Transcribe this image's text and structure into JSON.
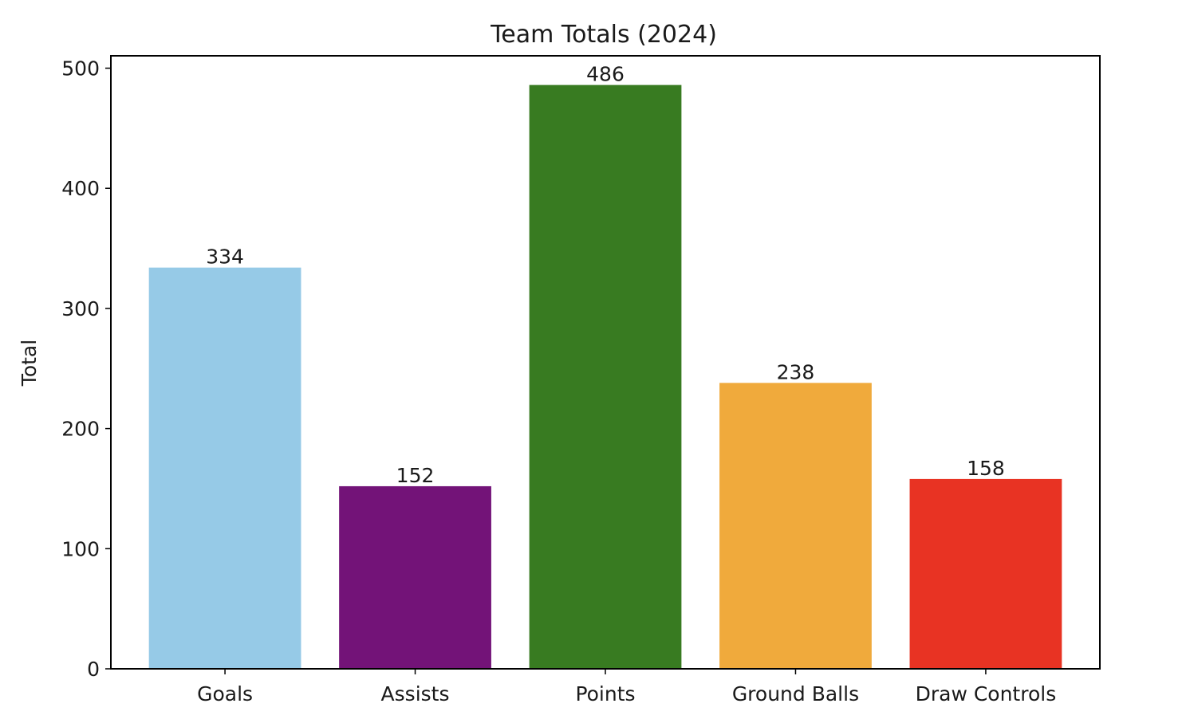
{
  "chart_data": {
    "type": "bar",
    "title": "Team Totals (2024)",
    "xlabel": "",
    "ylabel": "Total",
    "categories": [
      "Goals",
      "Assists",
      "Points",
      "Ground Balls",
      "Draw Controls"
    ],
    "values": [
      334,
      152,
      486,
      238,
      158
    ],
    "data_labels": [
      "334",
      "152",
      "486",
      "238",
      "158"
    ],
    "colors": [
      "#96cae7",
      "#731378",
      "#387b21",
      "#f0aa3c",
      "#e83323"
    ],
    "yticks": [
      0,
      100,
      200,
      300,
      400,
      500
    ],
    "ytick_labels": [
      "0",
      "100",
      "200",
      "300",
      "400",
      "500"
    ],
    "ylim": [
      0,
      510.3
    ],
    "grid": false,
    "legend": "none"
  }
}
